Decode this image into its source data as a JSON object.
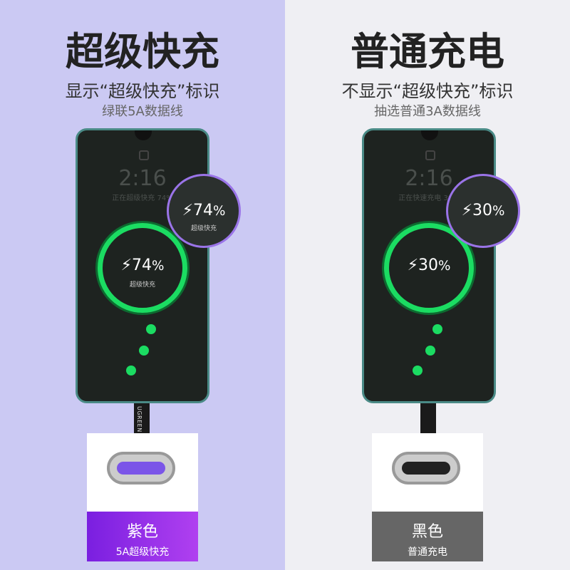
{
  "left": {
    "title": "超级快充",
    "subtitle": "显示“超级快充”标识",
    "caption": "绿联5A数据线",
    "clock": "2:16",
    "status": "正在超级快充 74%",
    "percent": "74",
    "percent_unit": "%",
    "mode": "超级快充",
    "cable_brand": "UGREEN",
    "color_label": "紫色",
    "color_sub": "5A超级快充",
    "label_color": "#8a2be2",
    "tongue_color": "#7b55e8"
  },
  "right": {
    "title": "普通充电",
    "subtitle": "不显示“超级快充”标识",
    "caption": "抽选普通3A数据线",
    "clock": "2:16",
    "status": "正在快速充电 30%",
    "percent": "30",
    "percent_unit": "%",
    "color_label": "黑色",
    "color_sub": "普通充电",
    "label_color": "#666666",
    "tongue_color": "#222222"
  }
}
